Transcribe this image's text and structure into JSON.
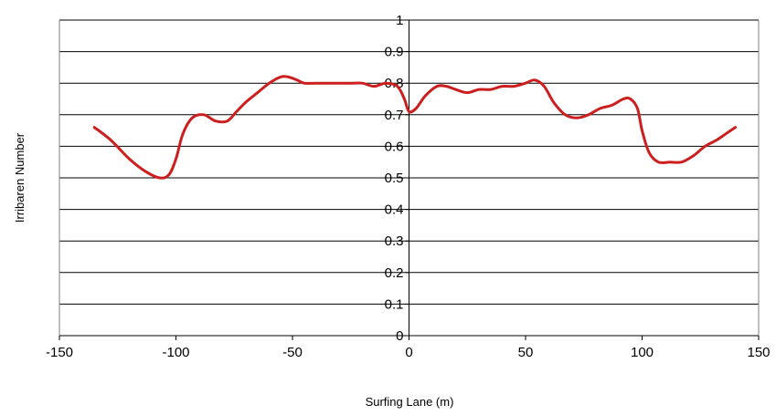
{
  "chart_data": {
    "type": "line",
    "title": "",
    "xlabel": "Surfing Lane (m)",
    "ylabel": "Irribaren Number",
    "xlim": [
      -150,
      150
    ],
    "ylim": [
      0,
      1
    ],
    "x_ticks": [
      -150,
      -100,
      -50,
      0,
      50,
      100,
      150
    ],
    "x_tick_labels": [
      "-150",
      "-100",
      "-50",
      "0",
      "50",
      "100",
      "150"
    ],
    "y_ticks": [
      0,
      0.1,
      0.2,
      0.3,
      0.4,
      0.5,
      0.6,
      0.7,
      0.8,
      0.9,
      1
    ],
    "y_tick_labels": [
      "0",
      "0.1",
      "0.2",
      "0.3",
      "0.4",
      "0.5",
      "0.6",
      "0.7",
      "0.8",
      "0.9",
      "1"
    ],
    "grid": "horizontal",
    "legend": "none",
    "series": [
      {
        "color": "#cc1f1f",
        "x": [
          -135,
          -128,
          -120,
          -113,
          -107,
          -103,
          -100,
          -97,
          -93,
          -88,
          -83,
          -78,
          -74,
          -70,
          -65,
          -60,
          -55,
          -52,
          -48,
          -45,
          -40,
          -35,
          -30,
          -25,
          -20,
          -15,
          -10,
          -5,
          -2,
          0,
          3,
          7,
          12,
          16,
          20,
          25,
          30,
          35,
          40,
          45,
          50,
          54,
          58,
          62,
          67,
          72,
          77,
          82,
          87,
          92,
          95,
          98,
          100,
          103,
          107,
          112,
          117,
          122,
          127,
          132,
          136,
          140
        ],
        "y": [
          0.66,
          0.62,
          0.56,
          0.52,
          0.5,
          0.51,
          0.56,
          0.64,
          0.69,
          0.7,
          0.68,
          0.68,
          0.71,
          0.74,
          0.77,
          0.8,
          0.82,
          0.82,
          0.81,
          0.8,
          0.8,
          0.8,
          0.8,
          0.8,
          0.8,
          0.79,
          0.8,
          0.79,
          0.75,
          0.71,
          0.72,
          0.76,
          0.79,
          0.79,
          0.78,
          0.77,
          0.78,
          0.78,
          0.79,
          0.79,
          0.8,
          0.81,
          0.79,
          0.74,
          0.7,
          0.69,
          0.7,
          0.72,
          0.73,
          0.75,
          0.75,
          0.72,
          0.65,
          0.58,
          0.55,
          0.55,
          0.55,
          0.57,
          0.6,
          0.62,
          0.64,
          0.66
        ]
      }
    ]
  }
}
